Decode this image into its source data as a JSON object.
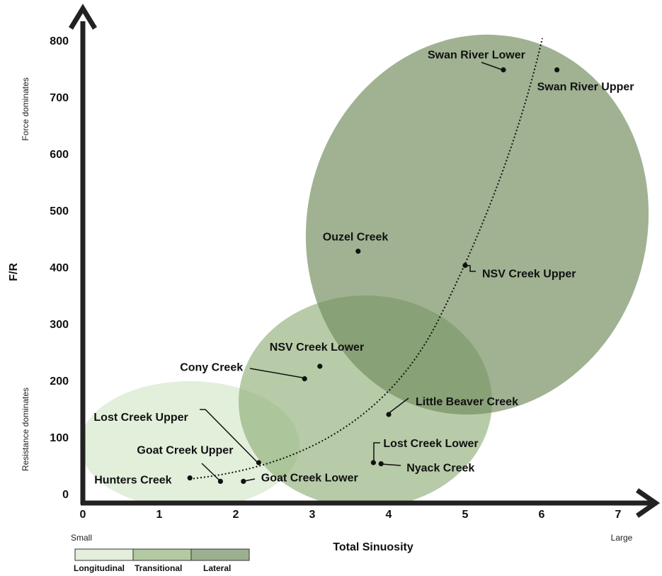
{
  "chart_data": {
    "type": "scatter",
    "xlabel": "Total Sinuosity",
    "ylabel": "F/R",
    "xlim": [
      0,
      7
    ],
    "ylim": [
      0,
      800
    ],
    "x_ticks": [
      0,
      1,
      2,
      3,
      4,
      5,
      6,
      7
    ],
    "y_ticks": [
      0,
      100,
      200,
      300,
      400,
      500,
      600,
      700,
      800
    ],
    "x_end_labels": {
      "left": "Small",
      "right": "Large"
    },
    "y_side_labels": {
      "top": "Force dominates",
      "bottom": "Resistance dominates"
    },
    "points": [
      {
        "name": "Swan River Lower",
        "x": 5.5,
        "y": 748
      },
      {
        "name": "Swan River Upper",
        "x": 6.2,
        "y": 748
      },
      {
        "name": "Ouzel Creek",
        "x": 3.6,
        "y": 428
      },
      {
        "name": "NSV Creek Upper",
        "x": 5.0,
        "y": 403
      },
      {
        "name": "NSV Creek Lower",
        "x": 3.1,
        "y": 225
      },
      {
        "name": "Cony Creek",
        "x": 2.9,
        "y": 203
      },
      {
        "name": "Little Beaver Creek",
        "x": 4.0,
        "y": 140
      },
      {
        "name": "Lost Creek Upper",
        "x": 2.3,
        "y": 55
      },
      {
        "name": "Lost Creek Lower",
        "x": 3.8,
        "y": 55
      },
      {
        "name": "Nyack Creek",
        "x": 3.9,
        "y": 53
      },
      {
        "name": "Goat Creek Upper",
        "x": 1.8,
        "y": 22
      },
      {
        "name": "Goat Creek Lower",
        "x": 2.1,
        "y": 22
      },
      {
        "name": "Hunters Creek",
        "x": 1.4,
        "y": 28
      }
    ],
    "regions": [
      {
        "name": "Longitudinal",
        "color": "#e3eedb"
      },
      {
        "name": "Transitional",
        "color": "#b3c9a0"
      },
      {
        "name": "Lateral",
        "color": "#9cb08f"
      }
    ],
    "trend_line": "dotted"
  }
}
